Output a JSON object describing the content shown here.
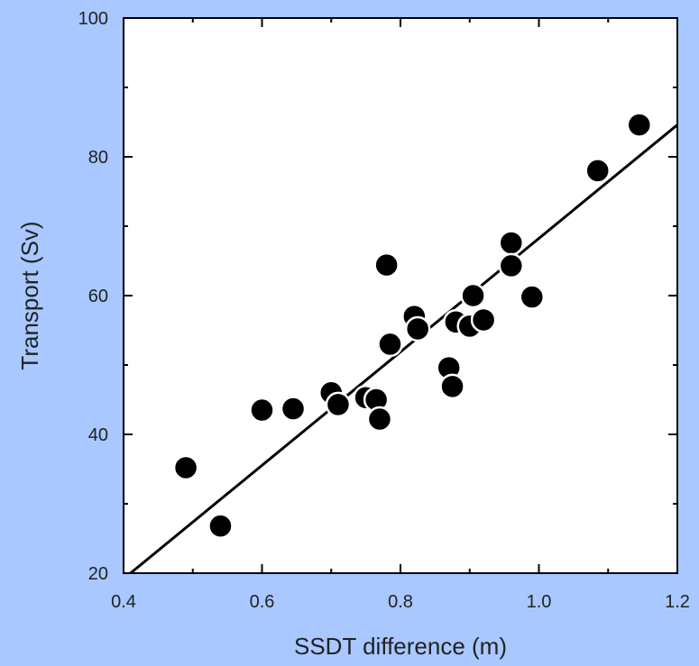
{
  "colors": {
    "page_background": "#a8c8ff",
    "plot_background": "#ffffff",
    "marker_fill": "#000000",
    "marker_edge": "#ffffff",
    "line": "#000000"
  },
  "chart_data": {
    "type": "scatter",
    "title": "",
    "xlabel": "SSDT difference (m)",
    "ylabel": "Transport (Sv)",
    "xlim": [
      0.4,
      1.2
    ],
    "ylim": [
      20,
      100
    ],
    "xticks": [
      "0.4",
      "0.6",
      "0.8",
      "1.0",
      "1.2"
    ],
    "xtick_values": [
      0.4,
      0.6,
      0.8,
      1.0,
      1.2
    ],
    "yticks": [
      "20",
      "40",
      "60",
      "80",
      "100"
    ],
    "ytick_values": [
      20,
      40,
      60,
      80,
      100
    ],
    "grid": false,
    "legend": "none",
    "points": [
      {
        "x": 0.49,
        "y": 35.2
      },
      {
        "x": 0.54,
        "y": 26.8
      },
      {
        "x": 0.6,
        "y": 43.5
      },
      {
        "x": 0.645,
        "y": 43.7
      },
      {
        "x": 0.7,
        "y": 46.0
      },
      {
        "x": 0.71,
        "y": 44.3
      },
      {
        "x": 0.75,
        "y": 45.3
      },
      {
        "x": 0.765,
        "y": 45.0
      },
      {
        "x": 0.77,
        "y": 42.2
      },
      {
        "x": 0.78,
        "y": 64.4
      },
      {
        "x": 0.785,
        "y": 53.0
      },
      {
        "x": 0.82,
        "y": 57.0
      },
      {
        "x": 0.825,
        "y": 55.2
      },
      {
        "x": 0.87,
        "y": 49.6
      },
      {
        "x": 0.875,
        "y": 46.9
      },
      {
        "x": 0.88,
        "y": 56.2
      },
      {
        "x": 0.9,
        "y": 55.6
      },
      {
        "x": 0.905,
        "y": 60.0
      },
      {
        "x": 0.92,
        "y": 56.5
      },
      {
        "x": 0.96,
        "y": 67.6
      },
      {
        "x": 0.96,
        "y": 64.3
      },
      {
        "x": 0.99,
        "y": 59.8
      },
      {
        "x": 1.085,
        "y": 78.0
      },
      {
        "x": 1.145,
        "y": 84.6
      }
    ],
    "fit_line": {
      "x": [
        0.41,
        1.2
      ],
      "y": [
        20,
        84.6
      ]
    }
  }
}
